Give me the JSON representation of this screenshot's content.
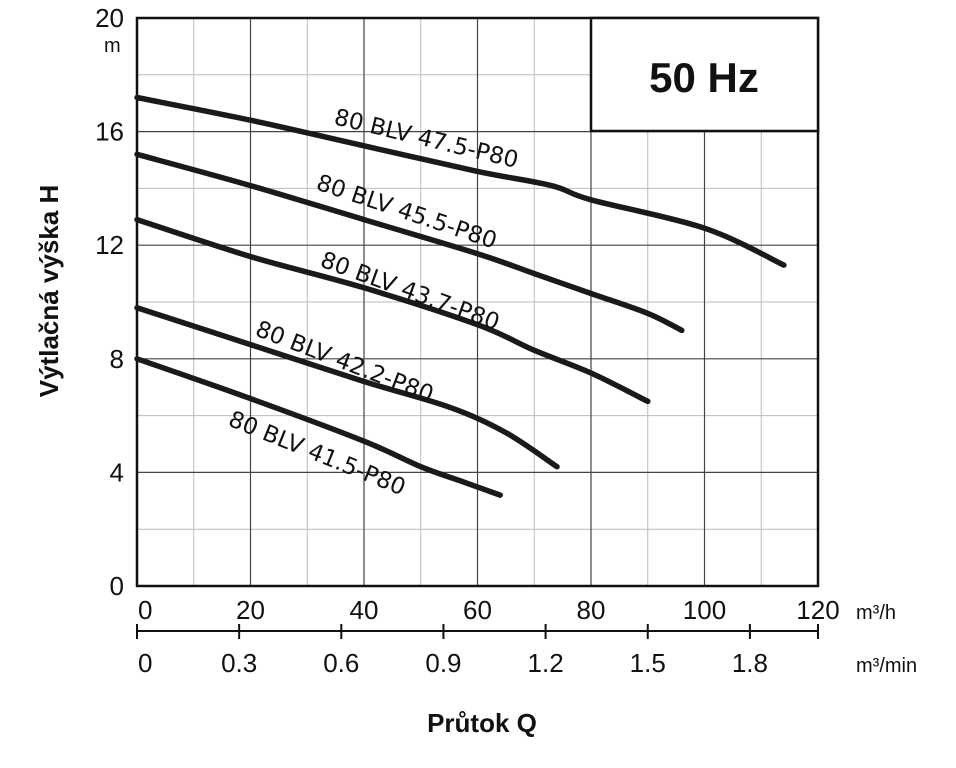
{
  "chart_data": {
    "type": "line",
    "frequency_label": "50 Hz",
    "ylabel": "Výtlačná výška H",
    "yunit": "m",
    "xlabel": "Průtok Q",
    "xunit_primary": "m³/h",
    "xunit_secondary": "m³/min",
    "xlim": [
      0,
      120
    ],
    "ylim": [
      0,
      20
    ],
    "yticks": [
      "0",
      "4",
      "8",
      "12",
      "16",
      "20"
    ],
    "xticks_primary": [
      "0",
      "20",
      "40",
      "60",
      "80",
      "100",
      "120"
    ],
    "xticks_secondary": [
      "0",
      "0.3",
      "0.6",
      "0.9",
      "1.2",
      "1.5",
      "1.8"
    ],
    "grid": true,
    "series": [
      {
        "name": "80 BLV 47.5-P80",
        "x": [
          0,
          20,
          40,
          60,
          73,
          80,
          100,
          114
        ],
        "y": [
          17.2,
          16.4,
          15.5,
          14.6,
          14.1,
          13.6,
          12.6,
          11.3
        ]
      },
      {
        "name": "80 BLV 45.5-P80",
        "x": [
          0,
          20,
          40,
          60,
          70,
          80,
          90,
          96
        ],
        "y": [
          15.2,
          14.1,
          12.9,
          11.7,
          11.0,
          10.3,
          9.6,
          9.0
        ]
      },
      {
        "name": "80 BLV 43.7-P80",
        "x": [
          0,
          20,
          40,
          60,
          70,
          80,
          90
        ],
        "y": [
          12.9,
          11.6,
          10.5,
          9.2,
          8.3,
          7.5,
          6.5
        ]
      },
      {
        "name": "80 BLV 42.2-P80",
        "x": [
          0,
          20,
          40,
          55,
          65,
          74
        ],
        "y": [
          9.8,
          8.5,
          7.2,
          6.3,
          5.4,
          4.2
        ]
      },
      {
        "name": "80 BLV 41.5-P80",
        "x": [
          0,
          20,
          40,
          50,
          57,
          64
        ],
        "y": [
          8.0,
          6.6,
          5.1,
          4.2,
          3.7,
          3.2
        ]
      }
    ]
  }
}
